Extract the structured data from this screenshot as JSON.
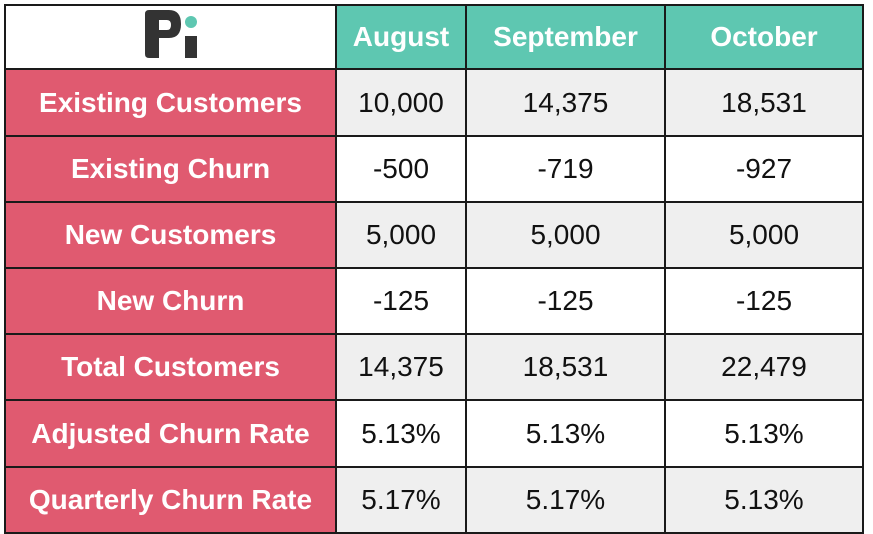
{
  "colors": {
    "header": "#5ec7b1",
    "label": "#e05a70",
    "alt_row": "#efefef",
    "logo": "#333333"
  },
  "logo_icon": "brand-logo-icon",
  "columns": [
    "August",
    "September",
    "October"
  ],
  "rows": [
    {
      "label": "Existing Customers",
      "values": [
        "10,000",
        "14,375",
        "18,531"
      ]
    },
    {
      "label": "Existing Churn",
      "values": [
        "-500",
        "-719",
        "-927"
      ]
    },
    {
      "label": "New Customers",
      "values": [
        "5,000",
        "5,000",
        "5,000"
      ]
    },
    {
      "label": "New Churn",
      "values": [
        "-125",
        "-125",
        "-125"
      ]
    },
    {
      "label": "Total Customers",
      "values": [
        "14,375",
        "18,531",
        "22,479"
      ]
    },
    {
      "label": "Adjusted Churn Rate",
      "values": [
        "5.13%",
        "5.13%",
        "5.13%"
      ]
    },
    {
      "label": "Quarterly Churn Rate",
      "values": [
        "5.17%",
        "5.17%",
        "5.13%"
      ]
    }
  ]
}
